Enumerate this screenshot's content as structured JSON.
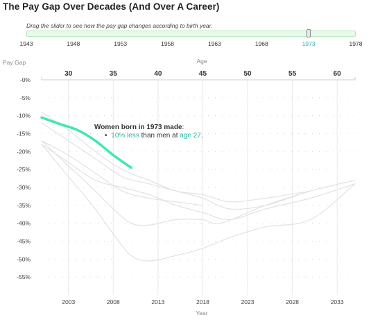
{
  "title": "The Pay Gap Over Decades (And Over A Career)",
  "slider": {
    "instructions": "Drag the slider to see how the pay gap changes according to birth year.",
    "min": 1943,
    "max": 1978,
    "value": 1973,
    "ticks": [
      "1943",
      "1948",
      "1953",
      "1958",
      "1963",
      "1968",
      "1973",
      "1978"
    ]
  },
  "colors": {
    "highlight": "#3de8b0",
    "accent_text": "#2ab0a8",
    "other_lines": "#e2e2e2",
    "grid": "#e9e9e9"
  },
  "annotation": {
    "heading_prefix": "Women born in 1973 made",
    "heading_suffix": ":",
    "bullet": "•",
    "value_text": "10% less",
    "middle_text": " than men at ",
    "age_text": "age 27",
    "end_text": "."
  },
  "chart_data": {
    "type": "line",
    "ylabel": "Pay Gap",
    "xlabel": "Year",
    "top_axis_label": "Age",
    "x_ticks": [
      "2003",
      "2008",
      "2013",
      "2018",
      "2023",
      "2028",
      "2033"
    ],
    "age_ticks": [
      "30",
      "35",
      "40",
      "45",
      "50",
      "55",
      "60"
    ],
    "y_ticks": [
      "-0%",
      "-5%",
      "-10%",
      "-15%",
      "-20%",
      "-25%",
      "-30%",
      "-35%",
      "-40%",
      "-45%",
      "-50%",
      "-55%"
    ],
    "xlim": [
      2000,
      2035
    ],
    "ylim": [
      -60,
      0
    ],
    "grid": true,
    "series": [
      {
        "highlight": false,
        "points": [
          [
            2000,
            -17
          ],
          [
            2003,
            -21
          ],
          [
            2006,
            -26
          ],
          [
            2009,
            -31
          ],
          [
            2012,
            -33
          ],
          [
            2015,
            -34
          ],
          [
            2018,
            -35
          ]
        ]
      },
      {
        "highlight": false,
        "points": [
          [
            2000,
            -12
          ],
          [
            2003,
            -17
          ],
          [
            2006,
            -22
          ],
          [
            2009,
            -27
          ],
          [
            2012,
            -29
          ],
          [
            2015,
            -31
          ],
          [
            2018,
            -33
          ],
          [
            2021,
            -36
          ],
          [
            2025,
            -35
          ],
          [
            2030,
            -31
          ],
          [
            2035,
            -28
          ]
        ]
      },
      {
        "highlight": false,
        "points": [
          [
            2000,
            -9
          ],
          [
            2003,
            -14
          ],
          [
            2006,
            -20
          ],
          [
            2009,
            -25
          ],
          [
            2012,
            -28
          ],
          [
            2015,
            -31
          ],
          [
            2018,
            -32
          ],
          [
            2021,
            -34
          ],
          [
            2025,
            -33
          ],
          [
            2030,
            -31
          ]
        ]
      },
      {
        "highlight": false,
        "points": [
          [
            2000,
            -18
          ],
          [
            2003,
            -23
          ],
          [
            2006,
            -28
          ],
          [
            2009,
            -30
          ],
          [
            2012,
            -32
          ],
          [
            2015,
            -35
          ],
          [
            2018,
            -37
          ],
          [
            2021,
            -39
          ],
          [
            2025,
            -36
          ],
          [
            2030,
            -33
          ],
          [
            2035,
            -29
          ]
        ]
      },
      {
        "highlight": false,
        "points": [
          [
            2000,
            -17
          ],
          [
            2003,
            -24
          ],
          [
            2006,
            -31
          ],
          [
            2008,
            -36
          ],
          [
            2010,
            -40
          ],
          [
            2012,
            -40.5
          ],
          [
            2015,
            -39
          ],
          [
            2018,
            -39
          ],
          [
            2020,
            -40
          ],
          [
            2025,
            -35
          ],
          [
            2030,
            -31
          ]
        ]
      },
      {
        "highlight": false,
        "points": [
          [
            2000,
            -18
          ],
          [
            2003,
            -27
          ],
          [
            2006,
            -36
          ],
          [
            2008,
            -43
          ],
          [
            2010,
            -49
          ],
          [
            2012,
            -50.5
          ],
          [
            2015,
            -49
          ],
          [
            2018,
            -47
          ],
          [
            2021,
            -44
          ],
          [
            2025,
            -41
          ],
          [
            2030,
            -39
          ],
          [
            2035,
            -29
          ]
        ]
      },
      {
        "highlight": true,
        "name": "1973",
        "points": [
          [
            2000,
            -10.5
          ],
          [
            2002,
            -12.3
          ],
          [
            2004,
            -14
          ],
          [
            2006,
            -17
          ],
          [
            2008,
            -21
          ],
          [
            2010,
            -24.5
          ]
        ]
      }
    ]
  }
}
